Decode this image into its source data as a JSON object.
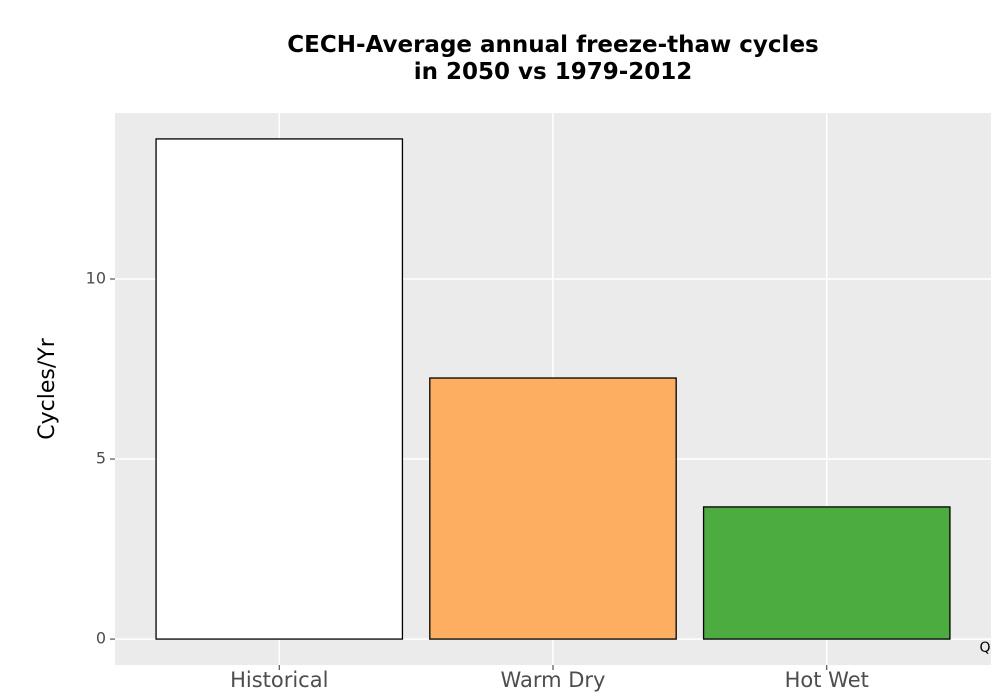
{
  "chart_data": {
    "type": "bar",
    "title": "CECH-Average annual freeze-thaw cycles\nin 2050 vs 1979-2012",
    "y_label": "Cycles/Yr",
    "categories": [
      "Historical",
      "Warm Dry",
      "Hot Wet"
    ],
    "values": [
      13.89,
      7.25,
      3.67
    ],
    "colors": [
      "#ffffff",
      "#fdae61",
      "#4dac40"
    ],
    "ylim": [
      -0.72,
      14.61
    ],
    "yticks": [
      0,
      5,
      10
    ],
    "grid": true,
    "annotation": "Q"
  }
}
